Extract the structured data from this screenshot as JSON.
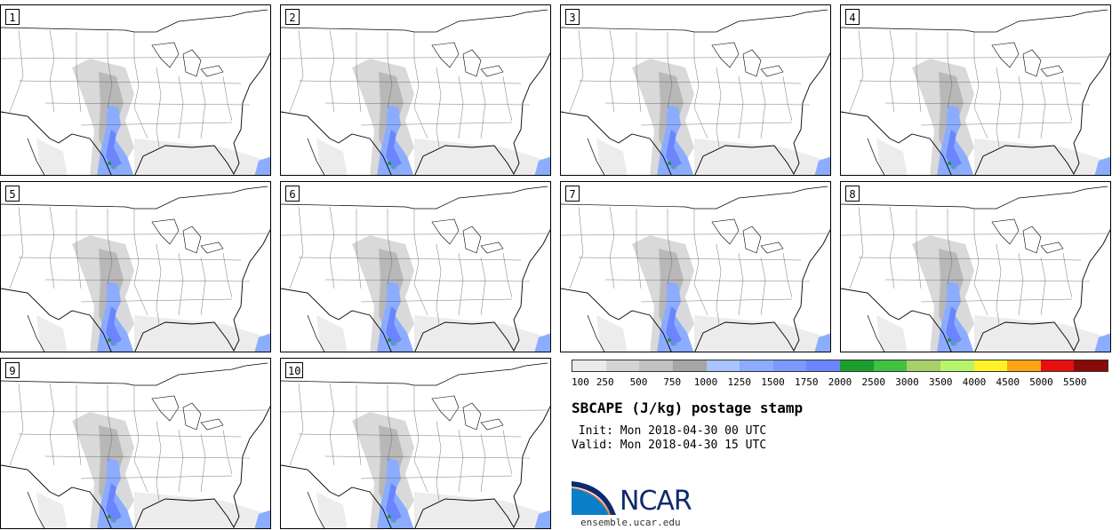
{
  "panels": [
    {
      "label": "1"
    },
    {
      "label": "2"
    },
    {
      "label": "3"
    },
    {
      "label": "4"
    },
    {
      "label": "5"
    },
    {
      "label": "6"
    },
    {
      "label": "7"
    },
    {
      "label": "8"
    },
    {
      "label": "9"
    },
    {
      "label": "10"
    }
  ],
  "colorbar": {
    "colors": [
      "#ebebeb",
      "#d4d4d4",
      "#c2c2c2",
      "#a6a6a6",
      "#aac4ff",
      "#8cacff",
      "#7d99ff",
      "#6b85ff",
      "#1a9e2e",
      "#3ec240",
      "#a8d06a",
      "#b6f56a",
      "#fff328",
      "#ffa312",
      "#e80f0f",
      "#8a0a0a"
    ],
    "labels": [
      "100",
      "250",
      "500",
      "750",
      "1000",
      "1250",
      "1500",
      "1750",
      "2000",
      "2500",
      "3000",
      "3500",
      "4000",
      "4500",
      "5000",
      "5500"
    ]
  },
  "title": "SBCAPE (J/kg) postage stamp",
  "init": " Init: Mon 2018-04-30 00 UTC",
  "valid": "Valid: Mon 2018-04-30 15 UTC",
  "logo": {
    "text": "NCAR",
    "url_text": "ensemble.ucar.edu"
  }
}
